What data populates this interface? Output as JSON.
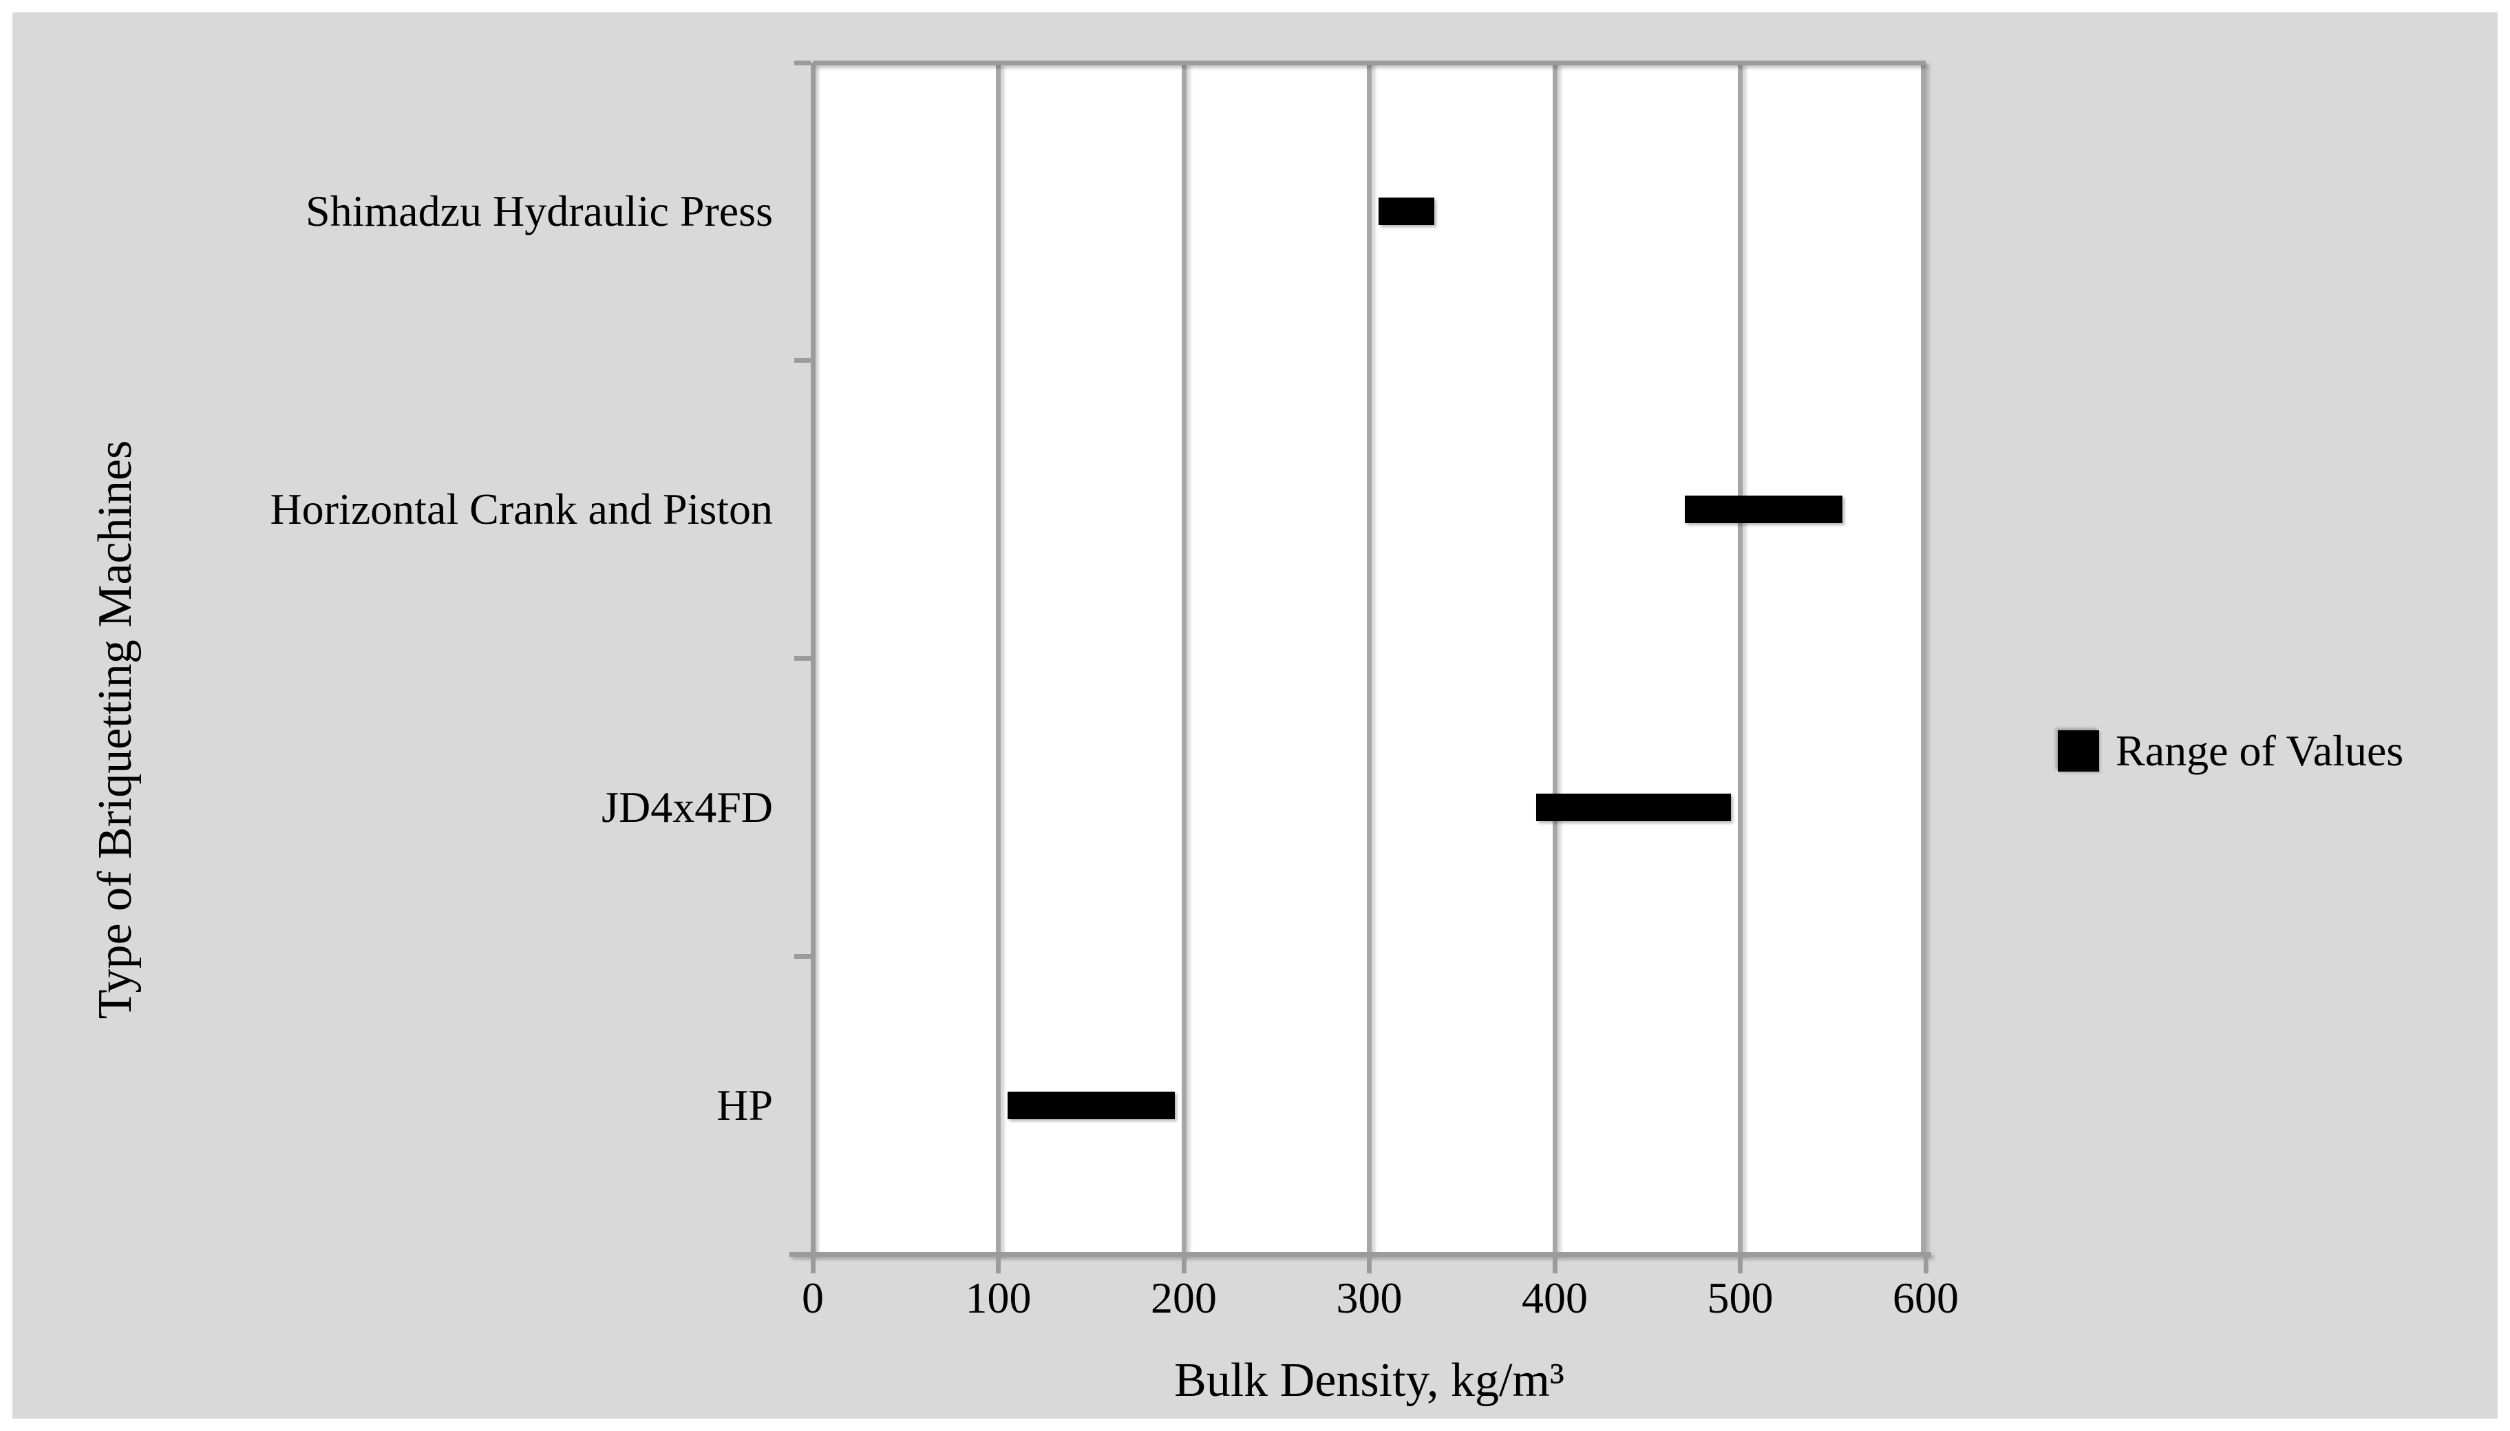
{
  "figure": {
    "page_background": "#ffffff",
    "panel_background": "#d9d9d9"
  },
  "chart_data": {
    "type": "bar",
    "subtype": "horizontal-floating-range-bars",
    "title": "",
    "xlabel": "Bulk Density, kg/m³",
    "ylabel": "Type of Briquetting Machines",
    "categories": [
      "Shimadzu Hydraulic Press",
      "Horizontal Crank and Piston",
      "JD4x4FD",
      "HP"
    ],
    "series": [
      {
        "name": "Range of Values",
        "ranges": [
          [
            305,
            335
          ],
          [
            470,
            555
          ],
          [
            390,
            495
          ],
          [
            105,
            195
          ]
        ]
      }
    ],
    "xlim": [
      0,
      600
    ],
    "xticks": [
      "0",
      "100",
      "200",
      "300",
      "400",
      "500",
      "600"
    ],
    "xtick_values": [
      0,
      100,
      200,
      300,
      400,
      500,
      600
    ],
    "grid": "vertical-gridlines-on",
    "legend": {
      "position": "right-middle",
      "marker": "black-square",
      "label": "Range of Values"
    },
    "colors": {
      "bar": "#000000",
      "gridline": "#a6a6a6",
      "axis": "#9b9b9b",
      "text": "#000000",
      "plot_background": "#ffffff",
      "panel_background": "#d9d9d9"
    }
  }
}
